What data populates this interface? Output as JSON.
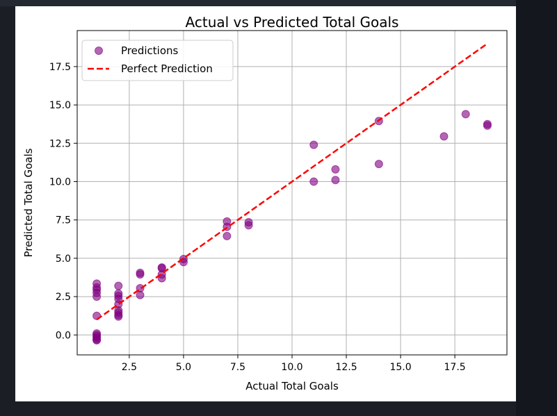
{
  "chart_data": {
    "type": "scatter",
    "title": "Actual vs Predicted Total Goals",
    "xlabel": "Actual Total Goals",
    "ylabel": "Predicted Total Goals",
    "xlim": [
      0.1,
      19.9
    ],
    "ylim": [
      -1.3,
      19.85
    ],
    "xticks": [
      "2.5",
      "5.0",
      "7.5",
      "10.0",
      "12.5",
      "15.0",
      "17.5"
    ],
    "xtick_values": [
      2.5,
      5.0,
      7.5,
      10.0,
      12.5,
      15.0,
      17.5
    ],
    "yticks": [
      "0.0",
      "2.5",
      "5.0",
      "7.5",
      "10.0",
      "12.5",
      "15.0",
      "17.5"
    ],
    "ytick_values": [
      0.0,
      2.5,
      5.0,
      7.5,
      10.0,
      12.5,
      15.0,
      17.5
    ],
    "grid": true,
    "legend_position": "top-left",
    "series": [
      {
        "name": "Predictions",
        "kind": "scatter",
        "color": "#800080",
        "x": [
          1,
          1,
          1,
          1,
          1,
          1,
          1,
          1,
          1,
          1,
          1,
          1,
          2,
          2,
          2,
          2,
          2,
          2,
          2,
          2,
          2,
          3,
          3,
          3,
          3,
          4,
          4,
          4,
          4,
          5,
          5,
          7,
          7,
          7,
          8,
          8,
          11,
          11,
          12,
          12,
          14,
          14,
          17,
          18,
          19,
          19
        ],
        "y": [
          3.35,
          3.1,
          2.95,
          2.75,
          2.5,
          1.25,
          0.1,
          0.0,
          -0.1,
          -0.2,
          -0.3,
          -0.35,
          3.2,
          2.7,
          2.55,
          2.35,
          2.0,
          1.6,
          1.45,
          1.3,
          1.2,
          4.05,
          3.95,
          3.05,
          2.6,
          4.4,
          4.35,
          3.95,
          3.7,
          4.95,
          4.75,
          7.4,
          7.05,
          6.45,
          7.35,
          7.15,
          12.4,
          10.0,
          10.8,
          10.1,
          13.95,
          11.15,
          12.95,
          14.4,
          13.75,
          13.65
        ]
      },
      {
        "name": "Perfect Prediction",
        "kind": "line",
        "style": "dashed",
        "color": "#ff0000",
        "x": [
          1,
          19
        ],
        "y": [
          1,
          19
        ]
      }
    ]
  }
}
